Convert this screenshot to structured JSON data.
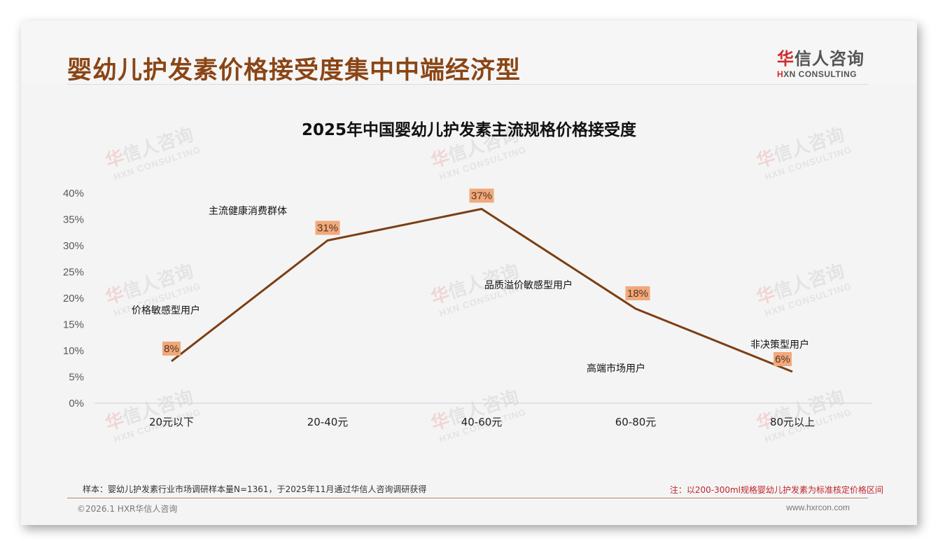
{
  "header": {
    "title": "婴幼儿护发素价格接受度集中中端经济型",
    "logo_cn_first": "华",
    "logo_cn_rest": "信人咨询",
    "logo_en_first": "H",
    "logo_en_rest": "XN CONSULTING"
  },
  "watermark": {
    "cn_first": "华",
    "cn_rest": "信人咨询",
    "en": "HXN CONSULTING"
  },
  "colors": {
    "title": "#8a4515",
    "line": "#7b3f14",
    "label_bg": "#f0a97c",
    "note_red": "#c0262d"
  },
  "chart_data": {
    "type": "line",
    "title": "2025年中国婴幼儿护发素主流规格价格接受度",
    "xlabel": "",
    "ylabel": "",
    "categories": [
      "20元以下",
      "20-40元",
      "40-60元",
      "60-80元",
      "80元以上"
    ],
    "series": [
      {
        "name": "价格接受度",
        "values": [
          8,
          31,
          37,
          18,
          6
        ],
        "labels": [
          "8%",
          "31%",
          "37%",
          "18%",
          "6%"
        ]
      }
    ],
    "ylim": [
      0,
      40
    ],
    "yticks": [
      "0%",
      "5%",
      "10%",
      "15%",
      "20%",
      "25%",
      "30%",
      "35%",
      "40%"
    ],
    "grid": false,
    "legend": null,
    "annotations": [
      {
        "text": "价格敏感型用户",
        "category": "20元以下"
      },
      {
        "text": "主流健康消费群体",
        "category": "20-40元"
      },
      {
        "text": "品质溢价敏感型用户",
        "category": "40-60元"
      },
      {
        "text": "高端市场用户",
        "category": "60-80元"
      },
      {
        "text": "非决策型用户",
        "category": "80元以上"
      }
    ]
  },
  "footer": {
    "sample_note": "样本：婴幼儿护发素行业市场调研样本量N=1361，于2025年11月通过华信人咨询调研获得",
    "price_note": "注：以200-300ml规格婴幼儿护发素为标准核定价格区间",
    "copyright": "©2026.1 HXR华信人咨询",
    "website": "www.hxrcon.com"
  }
}
